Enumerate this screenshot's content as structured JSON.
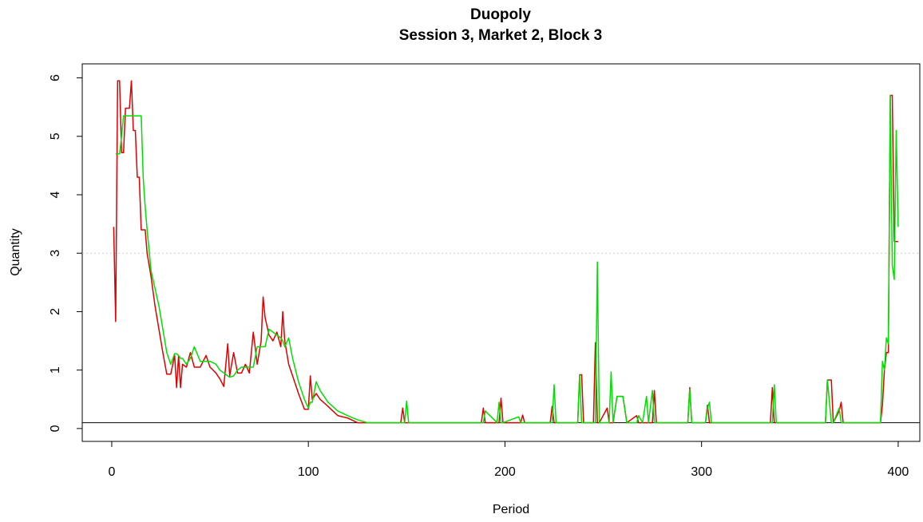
{
  "chart_data": {
    "type": "line",
    "title": "Duopoly",
    "subtitle": "Session 3, Market 2, Block 3",
    "x_label": "Period",
    "y_label": "Quantity",
    "x": [
      1,
      2,
      3,
      4,
      5,
      6,
      7,
      8,
      9,
      10,
      11,
      12,
      13,
      14,
      15,
      16,
      17,
      18,
      20,
      22,
      24,
      26,
      28,
      30,
      32,
      33,
      34,
      35,
      36,
      38,
      40,
      42,
      45,
      48,
      50,
      53,
      55,
      57,
      59,
      60,
      62,
      64,
      66,
      68,
      70,
      72,
      74,
      76,
      77,
      78,
      80,
      82,
      84,
      86,
      87,
      88,
      90,
      92,
      95,
      98,
      100,
      101,
      102,
      104,
      106,
      110,
      115,
      120,
      125,
      130,
      147,
      148,
      149,
      150,
      151,
      188,
      189,
      190,
      196,
      197,
      198,
      199,
      207,
      208,
      209,
      210,
      223,
      224,
      225,
      226,
      237,
      238,
      239,
      240,
      245,
      246,
      247,
      248,
      252,
      253,
      254,
      255,
      257,
      260,
      262,
      267,
      268,
      270,
      272,
      273,
      275,
      276,
      277,
      293,
      294,
      295,
      302,
      303,
      304,
      305,
      335,
      336,
      337,
      338,
      363,
      364,
      366,
      367,
      370,
      371,
      372,
      391,
      392,
      393,
      394,
      395,
      396,
      397,
      398,
      399,
      400
    ],
    "series": [
      {
        "color": "#e00000",
        "values": [
          3.45,
          1.83,
          5.95,
          5.95,
          4.72,
          4.72,
          5.48,
          5.48,
          5.48,
          5.95,
          5.1,
          5.1,
          4.3,
          4.3,
          3.4,
          3.4,
          3.4,
          3.0,
          2.6,
          2.1,
          1.7,
          1.3,
          0.93,
          0.93,
          1.25,
          0.7,
          1.25,
          0.7,
          1.1,
          1.05,
          1.3,
          1.05,
          1.05,
          1.25,
          1.05,
          0.95,
          0.85,
          0.72,
          1.45,
          0.9,
          1.3,
          0.95,
          0.95,
          1.1,
          0.95,
          1.65,
          1.1,
          1.5,
          2.25,
          1.9,
          1.6,
          1.5,
          1.65,
          1.4,
          2.0,
          1.5,
          1.1,
          0.9,
          0.6,
          0.33,
          0.33,
          0.9,
          0.5,
          0.6,
          0.5,
          0.38,
          0.22,
          0.18,
          0.1,
          0.1,
          0.1,
          0.35,
          0.1,
          0.1,
          0.1,
          0.1,
          0.35,
          0.1,
          0.1,
          0.1,
          0.52,
          0.1,
          0.1,
          0.1,
          0.23,
          0.1,
          0.1,
          0.38,
          0.1,
          0.1,
          0.1,
          0.92,
          0.92,
          0.1,
          0.1,
          1.47,
          0.1,
          0.1,
          0.35,
          0.1,
          0.1,
          0.1,
          0.55,
          0.55,
          0.1,
          0.22,
          0.1,
          0.1,
          0.1,
          0.1,
          0.1,
          0.65,
          0.1,
          0.1,
          0.7,
          0.1,
          0.1,
          0.4,
          0.1,
          0.1,
          0.1,
          0.7,
          0.1,
          0.1,
          0.1,
          0.83,
          0.83,
          0.1,
          0.3,
          0.45,
          0.1,
          0.1,
          0.4,
          1.0,
          1.3,
          1.3,
          5.7,
          5.7,
          3.2,
          3.2,
          3.2
        ]
      },
      {
        "color": "#00e000",
        "values": [
          null,
          4.7,
          4.7,
          4.7,
          5.0,
          5.35,
          5.35,
          5.35,
          5.35,
          5.35,
          5.35,
          5.35,
          5.35,
          5.35,
          5.35,
          4.3,
          3.8,
          3.4,
          2.7,
          2.4,
          2.1,
          1.7,
          1.3,
          1.1,
          1.28,
          1.28,
          1.25,
          1.2,
          1.2,
          1.1,
          1.2,
          1.4,
          1.15,
          1.15,
          1.15,
          1.1,
          1.0,
          0.95,
          0.9,
          0.88,
          0.9,
          1.0,
          1.05,
          1.05,
          1.05,
          1.05,
          1.4,
          1.4,
          1.4,
          1.4,
          1.7,
          1.65,
          1.6,
          1.55,
          1.5,
          1.4,
          1.55,
          1.2,
          0.8,
          0.5,
          0.35,
          0.45,
          0.45,
          0.8,
          0.65,
          0.45,
          0.3,
          0.22,
          0.15,
          0.1,
          0.1,
          0.1,
          0.1,
          0.47,
          0.1,
          0.1,
          0.1,
          0.3,
          0.1,
          0.45,
          0.1,
          0.1,
          0.2,
          0.1,
          0.1,
          0.1,
          0.1,
          0.1,
          0.75,
          0.1,
          0.1,
          0.92,
          0.1,
          0.1,
          0.1,
          0.1,
          2.85,
          0.1,
          0.1,
          0.1,
          0.97,
          0.1,
          0.55,
          0.55,
          0.1,
          0.1,
          0.22,
          0.1,
          0.55,
          0.1,
          0.65,
          0.1,
          0.1,
          0.1,
          0.67,
          0.1,
          0.1,
          0.35,
          0.45,
          0.1,
          0.1,
          0.1,
          0.75,
          0.1,
          0.1,
          0.83,
          0.1,
          0.1,
          0.35,
          0.1,
          0.1,
          0.1,
          1.15,
          1.0,
          1.55,
          1.45,
          5.7,
          2.8,
          2.55,
          5.1,
          3.45
        ]
      }
    ],
    "xlim": [
      -15,
      411
    ],
    "ylim": [
      -0.22,
      6.24
    ],
    "xticks": [
      0,
      100,
      200,
      300,
      400
    ],
    "yticks": [
      0,
      1,
      2,
      3,
      4,
      5,
      6
    ],
    "reference_lines": [
      {
        "value": 3,
        "color": "#cccccc",
        "style": "dotted"
      },
      {
        "value": 0.1,
        "color": "#000000",
        "style": "solid"
      }
    ]
  }
}
